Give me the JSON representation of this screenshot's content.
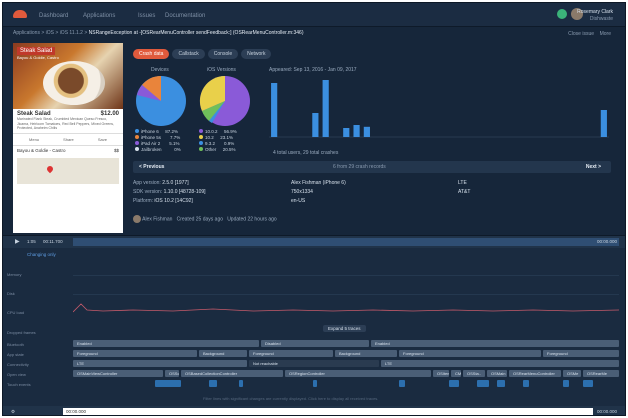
{
  "nav": {
    "items": [
      "Dashboard",
      "Applications",
      "Issues",
      "Documentation"
    ]
  },
  "user": {
    "name": "Rosemary Clark",
    "org": "Dishwaste"
  },
  "breadcrumb": {
    "prefix": "Applications > iOS > iOS 11.1.2 >",
    "title": "NSRangeException at -[OSRearMenuController sendFeedback:] (OSRearMenuController.m:346)"
  },
  "tools": {
    "close": "Close issue",
    "more": "More"
  },
  "tabs": [
    "Crash data",
    "Callstack",
    "Console",
    "Network"
  ],
  "phone": {
    "title": "Steak Salad",
    "subtitle": "Bayou & Goldie, Castro",
    "item_name": "Steak Salad",
    "price": "$12.00",
    "desc": "Marinated Flank Steak, Crumbled Mexican Queso Fresco, Jicama, Heirloom Tomatoes, Red Bell Peppers, Mixed Greens, Protected, Anaheim Chilis",
    "icons": [
      "Menu",
      "Share",
      "Save"
    ],
    "place": "Bayou & Goldie - Castro",
    "place_price": "$$"
  },
  "devices": {
    "label": "Devices",
    "legend": [
      {
        "name": "iPhone 6",
        "value": "87.2%",
        "color": "#3b8fe0"
      },
      {
        "name": "iPhone 5s",
        "value": "7.7%",
        "color": "#e9843b"
      },
      {
        "name": "iPad Air 2",
        "value": "5.1%",
        "color": "#8a5ad8"
      },
      {
        "name": "Jailbroken",
        "value": "0%",
        "color": "#d7e1ec"
      }
    ]
  },
  "versions": {
    "label": "iOS Versions",
    "legend": [
      {
        "name": "10.0.2",
        "value": "56.9%",
        "color": "#8a5ad8"
      },
      {
        "name": "10.2",
        "value": "23.1%",
        "color": "#e9d04a"
      },
      {
        "name": "9.3.2",
        "value": "0.9%",
        "color": "#3b8fe0"
      },
      {
        "name": "Other",
        "value": "20.5%",
        "color": "#6fbf5a"
      }
    ]
  },
  "chart_data": {
    "type": "bar",
    "title": "Appeared: Sep 13, 2016 - Jan 09, 2017",
    "values": [
      0.9,
      0,
      0,
      0,
      0.4,
      0.95,
      0,
      0.15,
      0.2,
      0.17,
      0,
      0,
      0,
      0,
      0,
      0,
      0,
      0,
      0,
      0,
      0,
      0,
      0,
      0,
      0,
      0,
      0,
      0,
      0,
      0,
      0,
      0,
      0.45
    ],
    "color": "#3b8fe0",
    "footer": "4 total users, 29 total crashes"
  },
  "pager": {
    "prev": "< Previous",
    "mid": "6 from 29 crash records",
    "next": "Next >"
  },
  "info": {
    "app_version_label": "App version:",
    "app_version": "2.5.0 [1977]",
    "sdk_label": "SDK version:",
    "sdk": "1.10.0 [48728-109]",
    "platform_label": "Platform:",
    "platform": "iOS 10.2 [14C92]",
    "device_user": "Alex Fishman (iPhone 6)",
    "resolution": "750x1334",
    "locale": "en-US",
    "network": "LTE",
    "carrier": "AT&T"
  },
  "meta": {
    "author": "Alex Fishman",
    "created": "Created 25 days ago",
    "updated": "Updated 22 hours ago"
  },
  "timeline": {
    "time_start": "1:05",
    "time_pos": "00:11.700",
    "time_end": "00:00.000",
    "changing_only": "Changing only",
    "rows": [
      "Memory",
      "Disk",
      "CPU load",
      "Dropped frames",
      "Bluetooth",
      "App state",
      "Connectivity",
      "Open view",
      "Touch events"
    ],
    "expand": "Expand 5 traces",
    "bluetooth": [
      "Enabled",
      "Disabled",
      "Enabled"
    ],
    "app_state": [
      "Foreground",
      "Background",
      "Foreground",
      "Background",
      "Foreground",
      "Foreground"
    ],
    "connectivity": [
      "LTE",
      "Not reachable",
      "LTE"
    ],
    "views": [
      "OSMainViewController",
      "OSSc..",
      "OSBasedCollectionController",
      "OSRegionController",
      "OSItem",
      "CMT",
      "OSSta..",
      "OSMain",
      "OSRearMenuController",
      "OSMe",
      "OSRearMe"
    ],
    "note": "Filter lines with significant changes are currently displayed. Click here to display all received traces.",
    "bottom_left": "00:00.000",
    "bottom_right": "00:00.000"
  }
}
